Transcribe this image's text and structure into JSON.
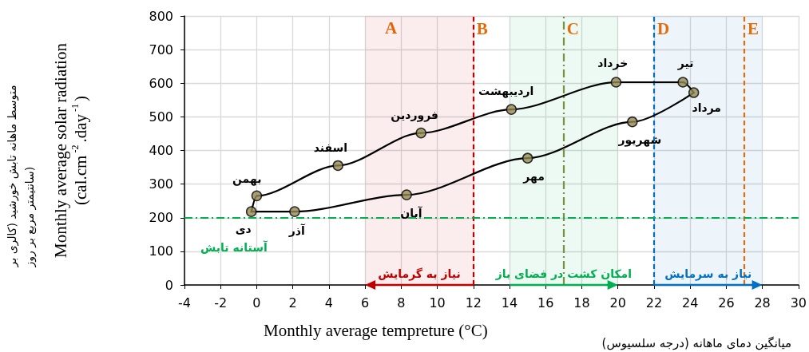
{
  "chart_data": {
    "type": "line",
    "xlabel": "Monthly average tempreture (°C)",
    "ylabel": "Monthly average solar radiation\n(cal.cm$^{-2}$.day$^{-1}$)",
    "x": [
      -0.3,
      0,
      4.5,
      9.1,
      14.1,
      19.9,
      23.6,
      24.2,
      20.8,
      15,
      8.3,
      2.1
    ],
    "series": [
      {
        "color": "#000000",
        "marker": "none",
        "x": [
          -0.3,
          0,
          4.5,
          9.1,
          14.1,
          19.9,
          23.6,
          24.2
        ],
        "values": [
          218,
          265,
          355,
          452,
          522,
          603,
          603,
          572
        ]
      },
      {
        "color": "#000000",
        "marker": "none",
        "x": [
          -0.3,
          2.1,
          8.3,
          15,
          20.8,
          24.2
        ],
        "values": [
          218,
          218,
          268,
          377,
          485,
          572
        ]
      },
      {
        "type": "scatter",
        "color": "#938953",
        "values": [
          218,
          265,
          355,
          452,
          522,
          603,
          603,
          572,
          485,
          377,
          268,
          218
        ]
      }
    ],
    "xlim": [
      -4,
      30
    ],
    "xticks": [
      -4,
      -2,
      0,
      2,
      4,
      6,
      8,
      10,
      12,
      14,
      16,
      18,
      20,
      22,
      24,
      26,
      28,
      30
    ],
    "ylim": [
      0,
      800
    ],
    "yticks": [
      0,
      100,
      200,
      300,
      400,
      500,
      600,
      700,
      800
    ],
    "grid": true,
    "marker": "circle",
    "line_style": "solid",
    "ref_lines": [
      {
        "axis": "x",
        "value": 12,
        "color": "#c00000",
        "line_style": "dashed",
        "label": "B"
      },
      {
        "axis": "x",
        "value": 17,
        "color": "#76923c",
        "line_style": "dashdot",
        "label": "C"
      },
      {
        "axis": "x",
        "value": 22,
        "color": "#0070c0",
        "line_style": "dashed",
        "label": "D"
      },
      {
        "axis": "x",
        "value": 27,
        "color": "#e36c09",
        "line_style": "dashed",
        "label": "E"
      },
      {
        "axis": "y",
        "value": 200,
        "color": "#00b050",
        "line_style": "dashdot",
        "label": "آستانه تابش"
      }
    ],
    "bands": [
      {
        "axis": "x",
        "from": 12,
        "to": 6,
        "color": "#c00000",
        "label": "نیاز به گرمایش"
      },
      {
        "axis": "x",
        "from": 14,
        "to": 20,
        "color": "#00b050",
        "label": "امکان کشت در فضای باز"
      },
      {
        "axis": "x",
        "from": 22,
        "to": 28,
        "color": "#0070c0",
        "label": "نیاز به سرمایش"
      }
    ],
    "annotations": [
      "متوسط ماهانه تابش خورشید (کالری بر\nسانتیمتر مربع بر روز)",
      "میانگین دمای ماهانه (درجه سلسیوس)",
      "A",
      {
        "text": "دی",
        "x": -0.3,
        "y": 218
      },
      {
        "text": "بهمن",
        "x": 0,
        "y": 265
      },
      {
        "text": "اسفند",
        "x": 4.5,
        "y": 355
      },
      {
        "text": "فروردین",
        "x": 9.1,
        "y": 452
      },
      {
        "text": "اردیبهشت",
        "x": 14.1,
        "y": 522
      },
      {
        "text": "خرداد",
        "x": 19.9,
        "y": 603
      },
      {
        "text": "تیر",
        "x": 23.6,
        "y": 603
      },
      {
        "text": "مرداد",
        "x": 24.2,
        "y": 572
      },
      {
        "text": "شهریور",
        "x": 20.8,
        "y": 485
      },
      {
        "text": "مهر",
        "x": 15,
        "y": 377
      },
      {
        "text": "آبان",
        "x": 8.3,
        "y": 268
      },
      {
        "text": "آذر",
        "x": 2.1,
        "y": 218
      }
    ]
  }
}
